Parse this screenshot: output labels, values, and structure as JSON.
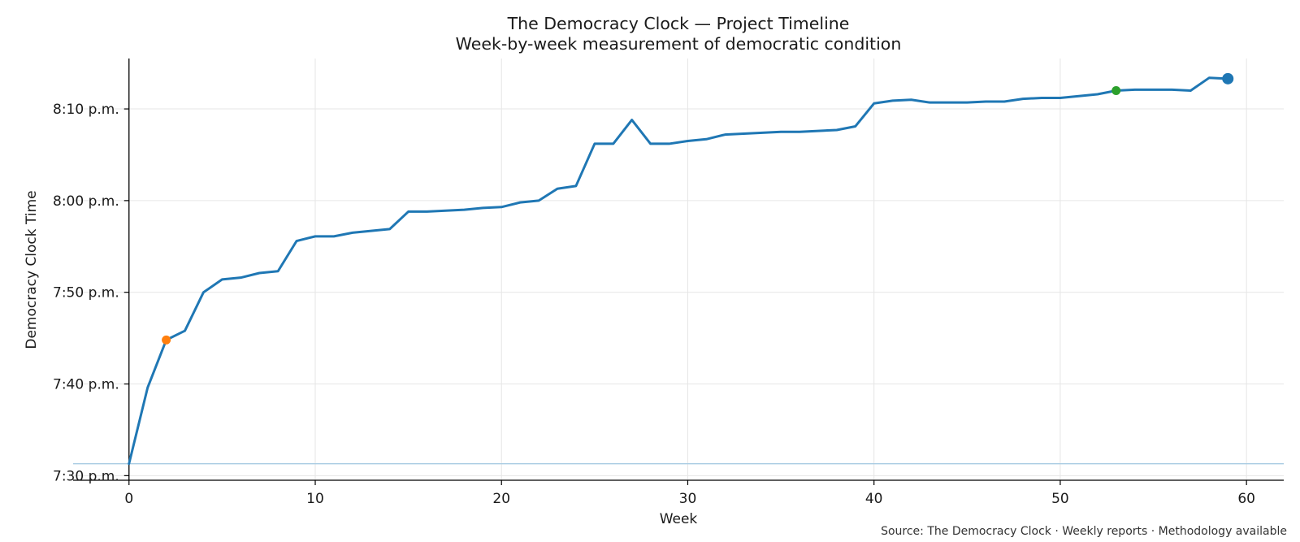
{
  "chart_data": {
    "type": "line",
    "title": "The Democracy Clock — Project Timeline",
    "subtitle": "Week-by-week measurement of democratic condition",
    "xlabel": "Week",
    "ylabel": "Democracy Clock Time",
    "xlim": [
      -3,
      62
    ],
    "ylim_minutes": [
      449.5,
      495.5
    ],
    "x_ticks": [
      0,
      10,
      20,
      30,
      40,
      50,
      60
    ],
    "y_ticks": [
      {
        "minutes": 450,
        "label": "7:30 p.m."
      },
      {
        "minutes": 460,
        "label": "7:40 p.m."
      },
      {
        "minutes": 470,
        "label": "7:50 p.m."
      },
      {
        "minutes": 480,
        "label": "8:00 p.m."
      },
      {
        "minutes": 490,
        "label": "8:10 p.m."
      }
    ],
    "grid": true,
    "baseline_minutes": 451.3,
    "series": [
      {
        "color": "#1f77b4",
        "x": [
          0,
          1,
          2,
          3,
          4,
          5,
          6,
          7,
          8,
          9,
          10,
          11,
          12,
          13,
          14,
          15,
          16,
          17,
          18,
          19,
          20,
          21,
          22,
          23,
          24,
          25,
          26,
          27,
          28,
          29,
          30,
          31,
          32,
          33,
          34,
          35,
          36,
          37,
          38,
          39,
          40,
          41,
          42,
          43,
          44,
          45,
          46,
          47,
          48,
          49,
          50,
          51,
          52,
          53,
          54,
          55,
          56,
          57,
          58,
          59
        ],
        "y": [
          451.3,
          459.6,
          464.8,
          465.8,
          470.0,
          471.4,
          471.6,
          472.1,
          472.3,
          475.6,
          476.1,
          476.1,
          476.5,
          476.7,
          476.9,
          478.8,
          478.8,
          478.9,
          479.0,
          479.2,
          479.3,
          479.8,
          480.0,
          481.3,
          481.6,
          486.2,
          486.2,
          488.8,
          486.2,
          486.2,
          486.5,
          486.7,
          487.2,
          487.3,
          487.4,
          487.5,
          487.5,
          487.6,
          487.7,
          488.1,
          490.6,
          490.9,
          491.0,
          490.7,
          490.7,
          490.7,
          490.8,
          490.8,
          491.1,
          491.2,
          491.2,
          491.4,
          491.6,
          492.0,
          492.1,
          492.1,
          492.1,
          492.0,
          493.4,
          493.3
        ]
      }
    ],
    "highlights": [
      {
        "x": 2,
        "y": 464.8,
        "color": "#ff7f0e"
      },
      {
        "x": 53,
        "y": 492.0,
        "color": "#2ca02c"
      },
      {
        "x": 59,
        "y": 493.3,
        "color": "#1f77b4"
      }
    ],
    "source": "Source: The Democracy Clock · Weekly reports · Methodology available"
  }
}
